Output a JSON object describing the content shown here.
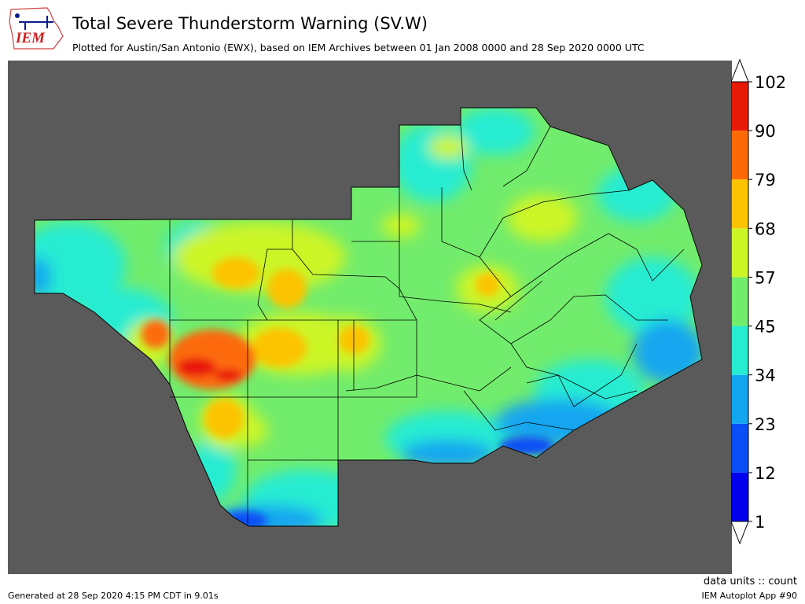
{
  "header": {
    "logo_text": "IEM",
    "title": "Total Severe Thunderstorm Warning (SV.W)",
    "subtitle": "Plotted for Austin/San Antonio (EWX), based on IEM Archives  between 01 Jan 2008 0000 and 28 Sep 2020 0000 UTC"
  },
  "legend": {
    "levels": [
      "1",
      "12",
      "23",
      "34",
      "45",
      "57",
      "68",
      "79",
      "90",
      "102"
    ],
    "bin_colors": [
      "#0000ee",
      "#0a4ff5",
      "#12a6f0",
      "#26ecd2",
      "#72ec6c",
      "#ccf526",
      "#fcc400",
      "#fc6a08",
      "#e91908"
    ],
    "over_color": "#ffffff",
    "under_color": "#ffffff"
  },
  "map": {
    "background_color": "#5a5a5a",
    "region": "Austin/San Antonio (EWX) county warning area"
  },
  "footer": {
    "units": "data units :: count",
    "generated": "Generated at 28 Sep 2020 4:15 PM CDT in 9.01s",
    "app": "IEM Autoplot App #90"
  }
}
